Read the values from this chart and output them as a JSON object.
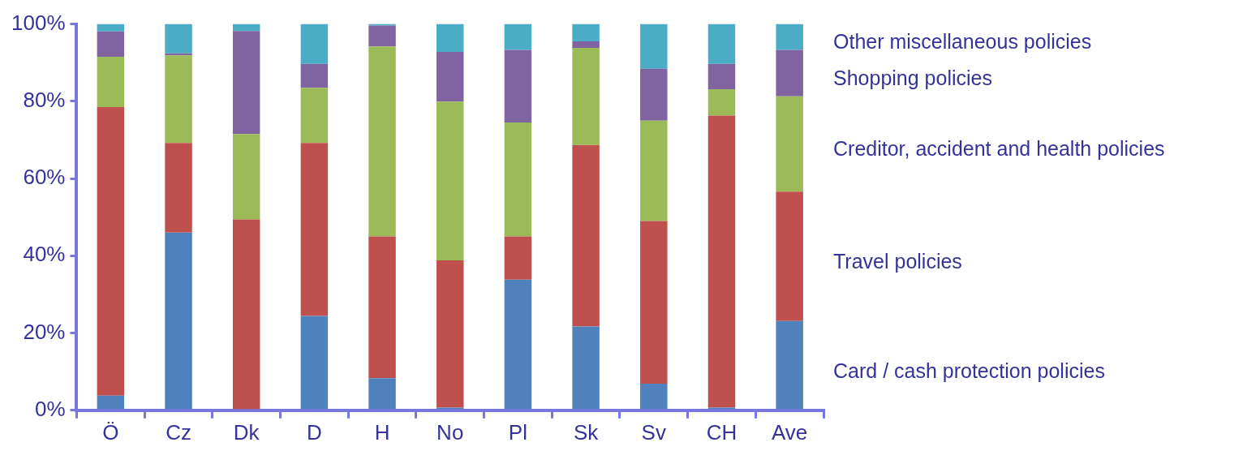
{
  "chart_data": {
    "type": "bar",
    "stacked": true,
    "categories": [
      "Ö",
      "Cz",
      "Dk",
      "D",
      "H",
      "No",
      "Pl",
      "Sk",
      "Sv",
      "CH",
      "Ave"
    ],
    "series": [
      {
        "name": "Card / cash protection policies",
        "color": "#4f81bd",
        "values": [
          3.8,
          46,
          0,
          24.4,
          8.3,
          0.7,
          33.8,
          21.7,
          6.9,
          0.7,
          23.1
        ]
      },
      {
        "name": "Travel policies",
        "color": "#c0504d",
        "values": [
          74.7,
          23.2,
          49.4,
          44.8,
          36.7,
          38.1,
          11.2,
          47,
          42.1,
          75.6,
          33.5
        ]
      },
      {
        "name": "Creditor, accident and health policies",
        "color": "#9bbb59",
        "values": [
          13,
          22.7,
          22.1,
          14.3,
          49.2,
          41.1,
          29.5,
          25.1,
          26,
          6.8,
          24.7
        ]
      },
      {
        "name": "Shopping policies",
        "color": "#8064a2",
        "values": [
          6.6,
          0.5,
          26.7,
          6.2,
          5.4,
          12.9,
          18.8,
          1.7,
          13.4,
          6.6,
          12
        ]
      },
      {
        "name": "Other miscellaneous policies",
        "color": "#4bacc6",
        "values": [
          1.9,
          7.6,
          1.8,
          10.3,
          0.4,
          7.2,
          6.7,
          4.5,
          11.6,
          10.3,
          6.7
        ]
      }
    ],
    "ylim": [
      0,
      100
    ],
    "yticks": [
      {
        "value": 0,
        "label": "0%"
      },
      {
        "value": 20,
        "label": "20%"
      },
      {
        "value": 40,
        "label": "40%"
      },
      {
        "value": 60,
        "label": "60%"
      },
      {
        "value": 80,
        "label": "80%"
      },
      {
        "value": 100,
        "label": "100%"
      }
    ],
    "grid": false,
    "legend": "right"
  }
}
